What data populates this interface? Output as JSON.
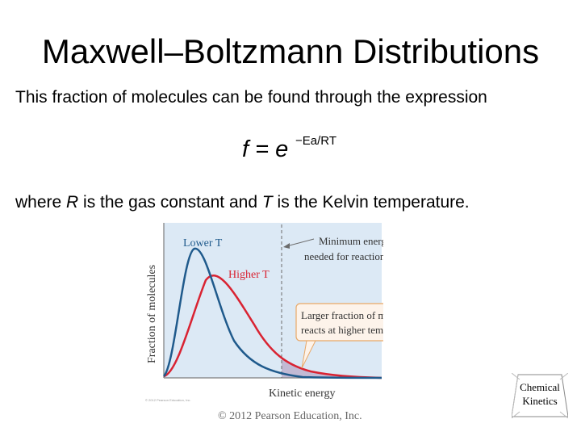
{
  "slide": {
    "title": "Maxwell–Boltzmann Distributions",
    "intro": "This fraction of molecules can be found through the expression",
    "formula": {
      "lhs": "f = e",
      "exponent": "−Ea/RT"
    },
    "where": {
      "part1": "where ",
      "R": "R",
      "part2": " is the gas constant and ",
      "T": "T",
      "part3": " is the Kelvin temperature."
    }
  },
  "figure": {
    "y_axis_label": "Fraction of molecules",
    "x_axis_label": "Kinetic energy",
    "lower_t_label": "Lower T",
    "higher_t_label": "Higher T",
    "min_energy_line1": "Minimum energy",
    "min_energy_line2": "needed for reaction, Ea",
    "callout_line1": "Larger fraction of molecules",
    "callout_line2": "reacts at higher temperature",
    "small_copyright": "© 2012 Pearson Education, Inc.",
    "colors": {
      "lower_t": "#1f5a8c",
      "higher_t": "#d92332",
      "background": "#dce9f5",
      "callout_fill": "#fdf3ea",
      "callout_border": "#e8a868"
    }
  },
  "footer": {
    "copyright": "© 2012 Pearson Education, Inc.",
    "badge_line1": "Chemical",
    "badge_line2": "Kinetics"
  }
}
